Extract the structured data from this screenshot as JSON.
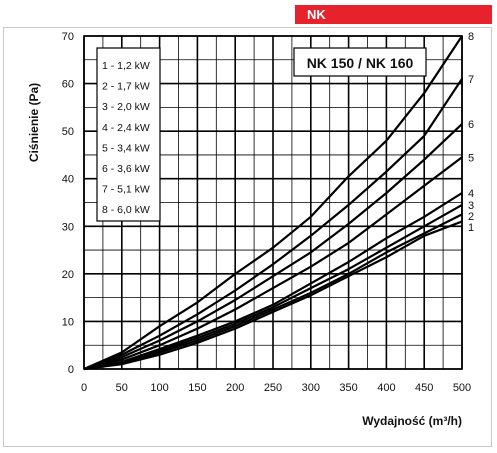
{
  "badge": {
    "label": "NK",
    "color": "#e8222c"
  },
  "chart_data": {
    "type": "line",
    "title": "NK 150 / NK 160",
    "xlabel": "Wydajność (m³/h)",
    "ylabel": "Ciśnienie (Pa)",
    "xlim": [
      0,
      500
    ],
    "ylim": [
      0,
      70
    ],
    "x_ticks": [
      0,
      50,
      100,
      150,
      200,
      250,
      300,
      350,
      400,
      450,
      500
    ],
    "y_ticks": [
      0,
      10,
      20,
      30,
      40,
      50,
      60,
      70
    ],
    "grid": true,
    "legend_position": "top-left",
    "legend_entries": [
      "1 - 1,2 kW",
      "2 - 1,7 kW",
      "3 - 2,0 kW",
      "4 - 2,4 kW",
      "5 - 3,4 kW",
      "6 - 3,6 kW",
      "7 - 5,1 kW",
      "8 - 6,0 kW"
    ],
    "series": [
      {
        "name": "1",
        "x": [
          0,
          50,
          100,
          150,
          200,
          250,
          300,
          350,
          400,
          450,
          500
        ],
        "y": [
          0,
          1.0,
          3.0,
          5.5,
          8.5,
          12.0,
          15.5,
          19.5,
          23.5,
          28.0,
          31.0
        ]
      },
      {
        "name": "2",
        "x": [
          0,
          50,
          100,
          150,
          200,
          250,
          300,
          350,
          400,
          450,
          500
        ],
        "y": [
          0,
          1.2,
          3.5,
          6.0,
          9.0,
          12.5,
          16.0,
          20.0,
          24.5,
          28.5,
          32.5
        ]
      },
      {
        "name": "3",
        "x": [
          0,
          50,
          100,
          150,
          200,
          250,
          300,
          350,
          400,
          450,
          500
        ],
        "y": [
          0,
          1.3,
          3.8,
          6.5,
          9.5,
          13.0,
          17.0,
          21.0,
          25.5,
          30.0,
          34.5
        ]
      },
      {
        "name": "4",
        "x": [
          0,
          50,
          100,
          150,
          200,
          250,
          300,
          350,
          400,
          450,
          500
        ],
        "y": [
          0,
          1.5,
          4.2,
          7.0,
          10.0,
          13.5,
          18.0,
          22.5,
          27.5,
          32.0,
          37.0
        ]
      },
      {
        "name": "5",
        "x": [
          0,
          50,
          100,
          150,
          200,
          250,
          300,
          350,
          400,
          450,
          500
        ],
        "y": [
          0,
          2.0,
          5.0,
          8.5,
          12.5,
          17.0,
          21.5,
          26.5,
          32.5,
          38.5,
          44.5
        ]
      },
      {
        "name": "6",
        "x": [
          0,
          50,
          100,
          150,
          200,
          250,
          300,
          350,
          400,
          450,
          500
        ],
        "y": [
          0,
          2.5,
          6.0,
          10.0,
          14.5,
          19.5,
          24.5,
          30.5,
          37.0,
          44.0,
          51.5
        ]
      },
      {
        "name": "7",
        "x": [
          0,
          50,
          100,
          150,
          200,
          250,
          300,
          350,
          400,
          450,
          500
        ],
        "y": [
          0,
          3.0,
          7.0,
          11.5,
          16.5,
          22.0,
          28.0,
          34.5,
          41.5,
          49.0,
          61.0
        ]
      },
      {
        "name": "8",
        "x": [
          0,
          50,
          100,
          150,
          200,
          250,
          300,
          350,
          400,
          450,
          500
        ],
        "y": [
          0,
          3.5,
          9.0,
          14.0,
          20.0,
          25.5,
          32.0,
          40.5,
          48.0,
          58.0,
          70.0
        ]
      }
    ]
  }
}
